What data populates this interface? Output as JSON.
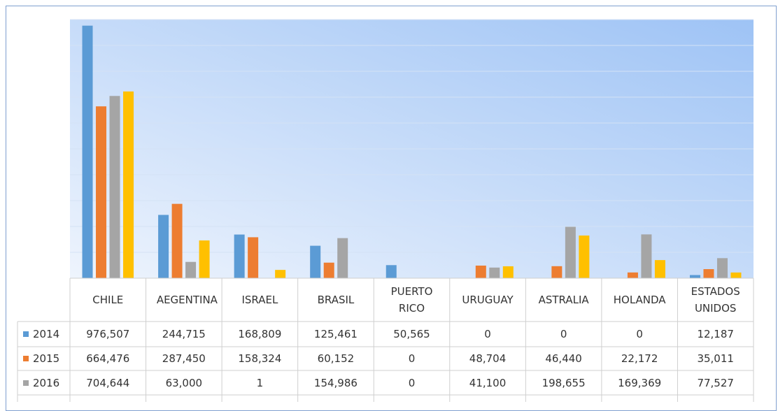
{
  "chart_data": {
    "type": "bar",
    "categories": [
      "CHILE",
      "AEGENTINA",
      "ISRAEL",
      "BRASIL",
      "PUERTO RICO",
      "URUGUAY",
      "ASTRALIA",
      "HOLANDA",
      "ESTADOS UNIDOS"
    ],
    "series": [
      {
        "name": "2014",
        "color": "#5b9bd5",
        "values": [
          976507,
          244715,
          168809,
          125461,
          50565,
          0,
          0,
          0,
          12187
        ],
        "value_labels": [
          "976,507",
          "244,715",
          "168,809",
          "125,461",
          "50,565",
          "0",
          "0",
          "0",
          "12,187"
        ]
      },
      {
        "name": "2015",
        "color": "#ed7d31",
        "values": [
          664476,
          287450,
          158324,
          60152,
          0,
          48704,
          46440,
          22172,
          35011
        ],
        "value_labels": [
          "664,476",
          "287,450",
          "158,324",
          "60,152",
          "0",
          "48,704",
          "46,440",
          "22,172",
          "35,011"
        ]
      },
      {
        "name": "2016",
        "color": "#a5a5a5",
        "values": [
          704644,
          63000,
          1,
          154986,
          0,
          41100,
          198655,
          169369,
          77527
        ],
        "value_labels": [
          "704,644",
          "63,000",
          "1",
          "154,986",
          "0",
          "41,100",
          "198,655",
          "169,369",
          "77,527"
        ]
      },
      {
        "color": "#ffc000",
        "values": [
          722000,
          146000,
          32000,
          0,
          0,
          46000,
          165000,
          70000,
          22000
        ]
      }
    ],
    "ylim": [
      0,
      1000000
    ],
    "yticks": [
      0,
      100000,
      200000,
      300000,
      400000,
      500000,
      600000,
      700000,
      800000,
      900000,
      1000000
    ],
    "grid": true
  }
}
